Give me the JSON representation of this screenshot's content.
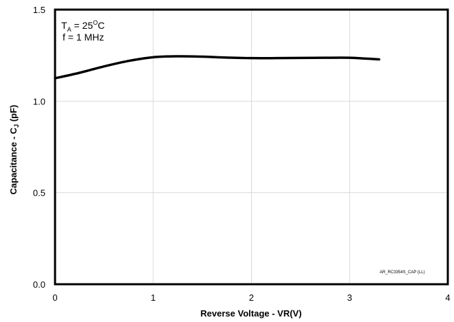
{
  "chart_data": {
    "type": "line",
    "xlabel": "Reverse Voltage - VR(V)",
    "ylabel": {
      "main": "Capacitance - C",
      "sub": "J",
      "unit": " (pF)"
    },
    "xlim": [
      0,
      4
    ],
    "ylim": [
      0.0,
      1.5
    ],
    "x_ticks": [
      0,
      1,
      2,
      3,
      4
    ],
    "x_tick_labels": [
      "0",
      "1",
      "2",
      "3",
      "4"
    ],
    "y_ticks": [
      0.0,
      0.5,
      1.0,
      1.5
    ],
    "y_tick_labels": [
      "0.0",
      "0.5",
      "1.0",
      "1.5"
    ],
    "grid": true,
    "annotations": {
      "temp": {
        "prefix": "T",
        "sub": "A",
        "mid": " = 25",
        "sup": "O",
        "suffix": "C"
      },
      "freq": "f = 1 MHz",
      "ref": "AR_RC3354S_CAP (LL)"
    },
    "series": [
      {
        "x": [
          0,
          0.25,
          0.5,
          0.75,
          1.0,
          1.25,
          1.5,
          1.75,
          2.0,
          2.25,
          2.5,
          2.75,
          3.0,
          3.15,
          3.3
        ],
        "y": [
          1.125,
          1.155,
          1.19,
          1.22,
          1.24,
          1.245,
          1.243,
          1.238,
          1.235,
          1.235,
          1.236,
          1.237,
          1.237,
          1.233,
          1.228
        ]
      }
    ],
    "colors": {
      "line": "#000000",
      "grid": "#d9d9d9",
      "frame": "#000000"
    }
  }
}
